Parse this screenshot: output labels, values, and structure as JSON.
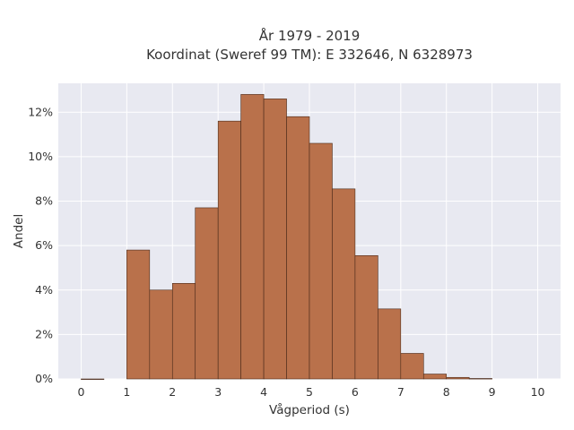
{
  "chart_data": {
    "type": "bar",
    "title_line1": "År 1979 - 2019",
    "title_line2": "Koordinat (Sweref 99 TM): E 332646, N 6328973",
    "xlabel": "Vågperiod (s)",
    "ylabel": "Andel",
    "bin_width": 0.5,
    "bins": [
      {
        "x0": 0.0,
        "value": 0.0
      },
      {
        "x0": 1.0,
        "value": 5.8
      },
      {
        "x0": 1.5,
        "value": 4.0
      },
      {
        "x0": 2.0,
        "value": 4.3
      },
      {
        "x0": 2.5,
        "value": 7.7
      },
      {
        "x0": 3.0,
        "value": 11.6
      },
      {
        "x0": 3.5,
        "value": 12.8
      },
      {
        "x0": 4.0,
        "value": 12.6
      },
      {
        "x0": 4.5,
        "value": 11.8
      },
      {
        "x0": 5.0,
        "value": 10.6
      },
      {
        "x0": 5.5,
        "value": 8.55
      },
      {
        "x0": 6.0,
        "value": 5.55
      },
      {
        "x0": 6.5,
        "value": 3.15
      },
      {
        "x0": 7.0,
        "value": 1.15
      },
      {
        "x0": 7.5,
        "value": 0.22
      },
      {
        "x0": 8.0,
        "value": 0.07
      },
      {
        "x0": 8.5,
        "value": 0.02
      }
    ],
    "xlim": [
      -0.5,
      10.5
    ],
    "ylim": [
      0,
      13.3
    ],
    "xticks": [
      0,
      1,
      2,
      3,
      4,
      5,
      6,
      7,
      8,
      9,
      10
    ],
    "yticks": [
      0,
      2,
      4,
      6,
      8,
      10,
      12
    ],
    "ytick_suffix": "%",
    "grid": true,
    "colors": {
      "bar_fill": "#b9714b",
      "bar_stroke": "#4a2a1a",
      "plot_bg": "#e8e9f1",
      "grid": "#ffffff",
      "text": "#333333"
    }
  }
}
